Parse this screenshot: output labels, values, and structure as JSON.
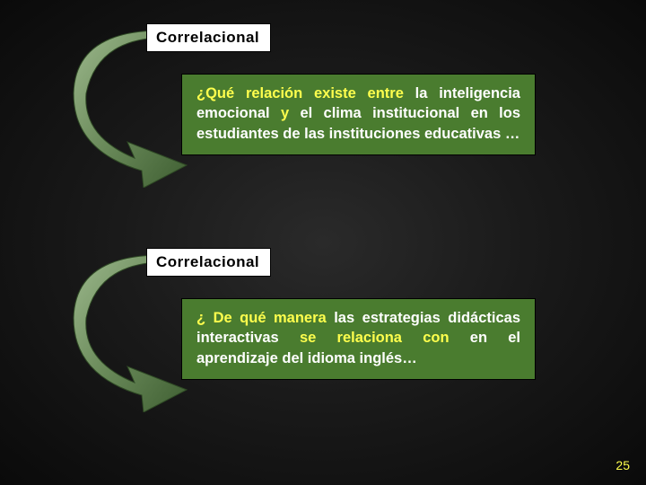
{
  "slide": {
    "page_number": "25",
    "background": {
      "center_color": "#2a2a2a",
      "edge_color": "#0a0a0a"
    },
    "arrow": {
      "fill_light": "#8aa77a",
      "fill_dark": "#4a6b3a",
      "stroke": "#3a5a2a"
    },
    "blocks": [
      {
        "label": "Correlacional",
        "label_bg": "#ffffff",
        "label_color": "#000000",
        "box_bg": "#4a7c2f",
        "text_color": "#ffffff",
        "highlight_color": "#ffff4d",
        "segments": [
          {
            "text": " ",
            "class": ""
          },
          {
            "text": "¿Qué relación existe entre",
            "class": "yellow"
          },
          {
            "text": " la inteligencia emocional ",
            "class": ""
          },
          {
            "text": "y",
            "class": "yellow"
          },
          {
            "text": "  el clima institucional en los estudiantes de las instituciones educativas …",
            "class": ""
          }
        ]
      },
      {
        "label": "Correlacional",
        "label_bg": "#ffffff",
        "label_color": "#000000",
        "box_bg": "#4a7c2f",
        "text_color": "#ffffff",
        "highlight_color": "#ffff4d",
        "segments": [
          {
            "text": "  ",
            "class": ""
          },
          {
            "text": "¿ De qué manera",
            "class": "yellow"
          },
          {
            "text": " las estrategias didácticas interactivas ",
            "class": ""
          },
          {
            "text": "se relaciona con",
            "class": "yellow"
          },
          {
            "text": " en el aprendizaje del idioma inglés…",
            "class": ""
          }
        ]
      }
    ]
  }
}
